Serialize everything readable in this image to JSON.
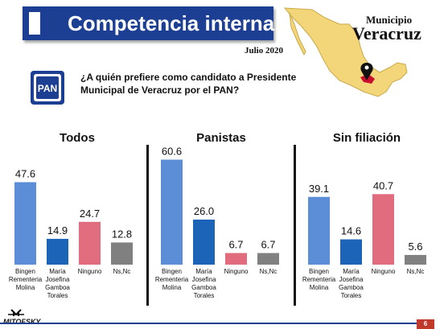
{
  "header": {
    "title": "Competencia interna",
    "municipio_label": "Municipio",
    "municipio_name": "Veracruz",
    "date": "Julio 2020"
  },
  "logo_text": "PAN",
  "question": "¿A quién prefiere como candidato a Presidente Municipal de Veracruz por el PAN?",
  "footer": {
    "brand": "MITOFSKY",
    "page_number": "6"
  },
  "colors": {
    "header_blue": "#1c3f93",
    "bingen": "#5b8ed6",
    "maria": "#1b64b8",
    "ninguno": "#e06c7d",
    "nsnc": "#808080",
    "map_fill": "#f3d679",
    "map_highlight": "#c8102e"
  },
  "chart_data": [
    {
      "type": "bar",
      "title": "Todos",
      "categories": [
        "Bingen Rementeria Molina",
        "María Josefina Gamboa Torales",
        "Ninguno",
        "Ns,Nc"
      ],
      "category_lines": [
        [
          "Bingen",
          "Rementeria",
          "Molina"
        ],
        [
          "María",
          "Josefina",
          "Gamboa",
          "Torales"
        ],
        [
          "Ninguno"
        ],
        [
          "Ns,Nc"
        ]
      ],
      "values": [
        47.6,
        14.9,
        24.7,
        12.8
      ],
      "value_labels": [
        "47.6",
        "14.9",
        "24.7",
        "12.8"
      ],
      "ylim": [
        0,
        65
      ]
    },
    {
      "type": "bar",
      "title": "Panistas",
      "categories": [
        "Bingen Rementeria Molina",
        "María Josefina Gamboa Torales",
        "Ninguno",
        "Ns,Nc"
      ],
      "category_lines": [
        [
          "Bingen",
          "Rementeria",
          "Molina"
        ],
        [
          "María",
          "Josefina",
          "Gamboa",
          "Torales"
        ],
        [
          "Ninguno"
        ],
        [
          "Ns,Nc"
        ]
      ],
      "values": [
        60.6,
        26.0,
        6.7,
        6.7
      ],
      "value_labels": [
        "60.6",
        "26.0",
        "6.7",
        "6.7"
      ],
      "ylim": [
        0,
        65
      ]
    },
    {
      "type": "bar",
      "title": "Sin filiación",
      "categories": [
        "Bingen Rementeria Molina",
        "María Josefina Gamboa Torales",
        "Ninguno",
        "Ns,Nc"
      ],
      "category_lines": [
        [
          "Bingen",
          "Rementeria",
          "Molina"
        ],
        [
          "María",
          "Josefina",
          "Gamboa",
          "Torales"
        ],
        [
          "Ninguno"
        ],
        [
          "Ns,Nc"
        ]
      ],
      "values": [
        39.1,
        14.6,
        40.7,
        5.6
      ],
      "value_labels": [
        "39.1",
        "14.6",
        "40.7",
        "5.6"
      ],
      "ylim": [
        0,
        65
      ]
    }
  ]
}
